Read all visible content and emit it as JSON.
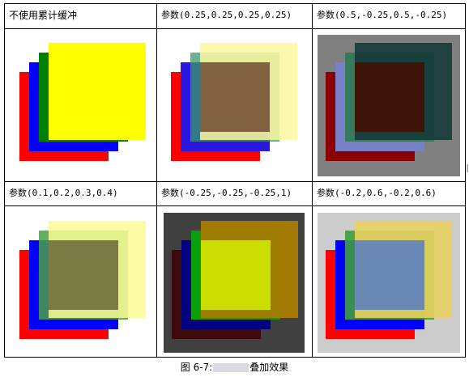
{
  "cells": [
    {
      "label": "不使用累计缓冲",
      "background": "#ffffff",
      "squares": [
        {
          "color": "#ff0000",
          "opacity": 1
        },
        {
          "color": "#0000ff",
          "opacity": 1
        },
        {
          "color": "#008000",
          "opacity": 1
        },
        {
          "color": "#ffff00",
          "opacity": 1
        }
      ]
    },
    {
      "label": "参数(0.25,0.25,0.25,0.25)",
      "background": "#ffffff",
      "squares": [
        {
          "color": "#ff0000",
          "opacity": 1
        },
        {
          "color": "#2a18e0",
          "opacity": 1
        },
        {
          "color": "#3a9a6a",
          "opacity": 0.75
        },
        {
          "color": "#fbf7a0",
          "opacity": 0.85
        }
      ],
      "center_color": "#826240"
    },
    {
      "label": "参数(0.5,-0.25,0.5,-0.25)",
      "background": "#808080",
      "squares": [
        {
          "color": "#8a0000",
          "opacity": 1
        },
        {
          "color": "#7a80c8",
          "opacity": 1
        },
        {
          "color": "#2e7a52",
          "opacity": 0.9
        },
        {
          "color": "#163a3a",
          "opacity": 0.9
        }
      ],
      "center_color": "#3d1408"
    },
    {
      "label": "参数(0.1,0.2,0.3,0.4)",
      "background": "#ffffff",
      "squares": [
        {
          "color": "#ff0000",
          "opacity": 1
        },
        {
          "color": "#0000ff",
          "opacity": 1
        },
        {
          "color": "#46a046",
          "opacity": 0.85
        },
        {
          "color": "#fbfa96",
          "opacity": 0.85
        }
      ],
      "center_color": "#7a7a45"
    },
    {
      "label": "参数(-0.25,-0.25,-0.25,1)",
      "background": "#404040",
      "squares": [
        {
          "color": "#3c0a0a",
          "opacity": 1
        },
        {
          "color": "#000080",
          "opacity": 1
        },
        {
          "color": "#0aa00a",
          "opacity": 1
        },
        {
          "color": "#a67c00",
          "opacity": 0.95
        }
      ],
      "center_color": "#ccdd00"
    },
    {
      "label": "参数(-0.2,0.6,-0.2,0.6)",
      "background": "#cccccc",
      "squares": [
        {
          "color": "#ff0000",
          "opacity": 1
        },
        {
          "color": "#0000ff",
          "opacity": 1
        },
        {
          "color": "#3f9f3f",
          "opacity": 0.9
        },
        {
          "color": "#e8d060",
          "opacity": 0.9
        }
      ],
      "center_color": "#6a88b6"
    }
  ],
  "caption": {
    "prefix": "图 6-7:",
    "suffix": "叠加效果"
  }
}
